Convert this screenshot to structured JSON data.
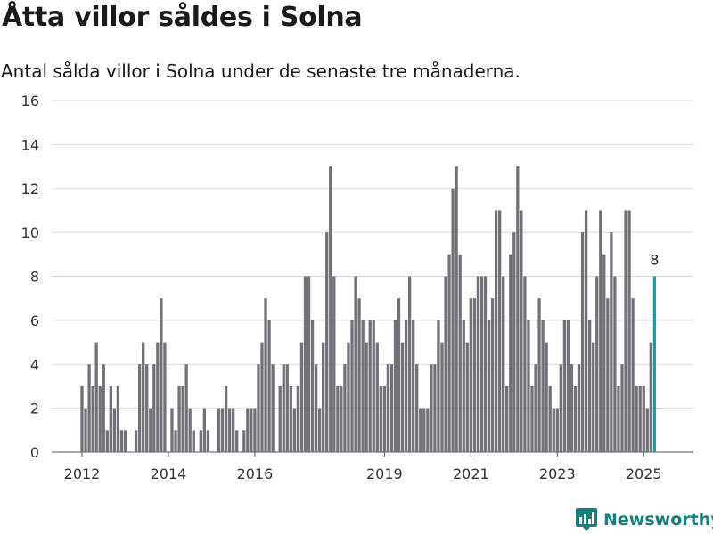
{
  "title": "Åtta villor såldes i Solna",
  "subtitle": "Antal sålda villor i Solna under de senaste tre månaderna.",
  "brand": {
    "name": "Newsworthy",
    "icon": "newsworthy-logo-icon",
    "color": "#16817c"
  },
  "chart_data": {
    "type": "bar",
    "title": "Åtta villor såldes i Solna",
    "subtitle": "Antal sålda villor i Solna under de senaste tre månaderna.",
    "xlabel": "",
    "ylabel": "",
    "ylim": [
      0,
      16
    ],
    "yticks": [
      0,
      2,
      4,
      6,
      8,
      10,
      12,
      14,
      16
    ],
    "xticks": [
      "2012",
      "2014",
      "2016",
      "2019",
      "2021",
      "2023",
      "2025"
    ],
    "grid": true,
    "bar_color": "#737177",
    "highlight_color": "#16a29a",
    "highlight_label": "8",
    "series": [
      {
        "values": [
          3,
          2,
          4,
          3,
          5,
          3,
          4,
          1,
          3,
          2,
          3,
          1,
          1,
          0,
          0,
          1,
          4,
          5,
          4,
          2,
          4,
          5,
          7,
          5,
          0,
          2,
          1,
          3,
          3,
          4,
          2,
          1,
          0,
          1,
          2,
          1,
          0,
          0,
          2,
          2,
          3,
          2,
          2,
          1,
          0,
          1,
          2,
          2,
          2,
          4,
          5,
          7,
          6,
          4,
          0,
          3,
          4,
          4,
          3,
          2,
          3,
          5,
          8,
          8,
          6,
          4,
          2,
          5,
          10,
          13,
          8,
          3,
          3,
          4,
          5,
          6,
          8,
          7,
          6,
          5,
          6,
          6,
          5,
          3,
          3,
          4,
          4,
          6,
          7,
          5,
          6,
          8,
          6,
          4,
          2,
          2,
          2,
          4,
          4,
          6,
          5,
          8,
          9,
          12,
          13,
          9,
          6,
          5,
          7,
          7,
          8,
          8,
          8,
          6,
          7,
          11,
          11,
          8,
          3,
          9,
          10,
          13,
          11,
          8,
          6,
          3,
          4,
          7,
          6,
          5,
          3,
          2,
          2,
          4,
          6,
          6,
          4,
          3,
          4,
          10,
          11,
          6,
          5,
          8,
          11,
          9,
          7,
          10,
          8,
          3,
          4,
          11,
          11,
          7,
          3,
          3,
          3,
          2,
          5,
          8
        ],
        "highlight_last": true
      }
    ]
  }
}
